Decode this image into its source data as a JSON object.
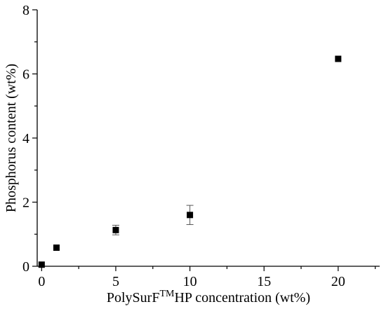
{
  "chart_data": {
    "type": "scatter",
    "title": "",
    "xlabel_main": "PolySurF",
    "xlabel_sup": "TM",
    "xlabel_rest": "HP concentration (wt%)",
    "ylabel": "Phosphorus content (wt%)",
    "xlim": [
      -0.3,
      22.8
    ],
    "ylim": [
      0,
      8
    ],
    "xticks": [
      0,
      5,
      10,
      15,
      20
    ],
    "yticks": [
      0,
      2,
      4,
      6,
      8
    ],
    "xticks_minor": [
      2.5,
      7.5,
      12.5,
      17.5,
      22.5
    ],
    "yticks_minor": [
      1,
      3,
      5,
      7
    ],
    "grid": false,
    "marker_color": "#000000",
    "series": [
      {
        "x": [
          0,
          1,
          5,
          10,
          20
        ],
        "y": [
          0.05,
          0.58,
          1.13,
          1.6,
          6.47
        ],
        "err_low": [
          0.0,
          0.0,
          0.15,
          0.3,
          0.0
        ],
        "err_high": [
          0.0,
          0.0,
          0.15,
          0.3,
          0.0
        ]
      }
    ]
  }
}
